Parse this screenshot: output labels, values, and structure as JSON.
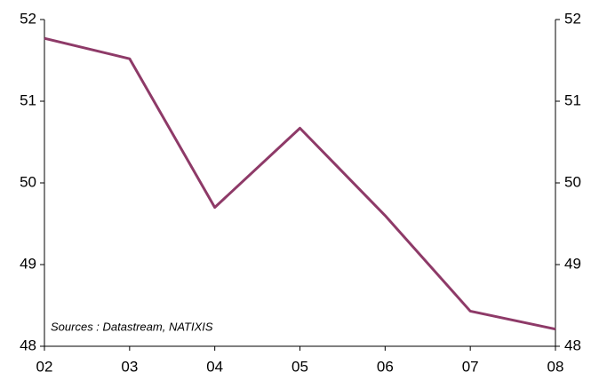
{
  "chart_data": {
    "type": "line",
    "categories": [
      "02",
      "03",
      "04",
      "05",
      "06",
      "07",
      "08"
    ],
    "series": [
      {
        "name": null,
        "color": "#8e3a68",
        "values": [
          51.77,
          51.52,
          49.7,
          50.67,
          49.6,
          48.43,
          48.21
        ]
      }
    ],
    "ylim": [
      48,
      52
    ],
    "yticks": [
      48,
      49,
      50,
      51,
      52
    ],
    "y2lim": [
      48,
      52
    ],
    "y2ticks": [
      48,
      49,
      50,
      51,
      52
    ],
    "annotation": "Sources : Datastream, NATIXIS",
    "grid": false
  }
}
